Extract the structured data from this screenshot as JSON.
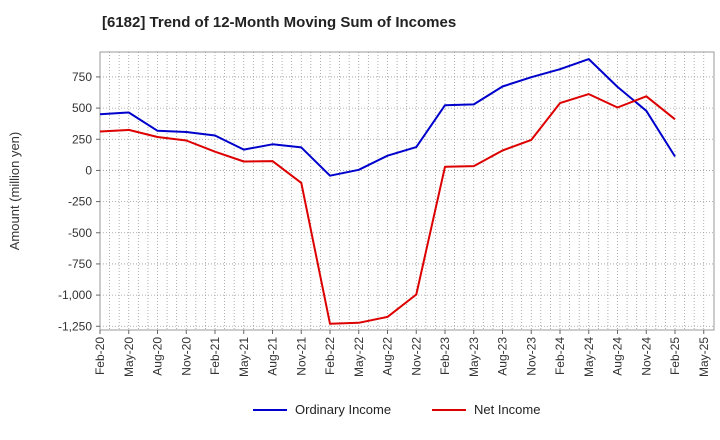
{
  "chart_data": {
    "type": "line",
    "title": "[6182]  Trend of 12-Month Moving Sum of Incomes",
    "xlabel": "",
    "ylabel": "Amount (million yen)",
    "categories": [
      "Feb-20",
      "May-20",
      "Aug-20",
      "Nov-20",
      "Feb-21",
      "May-21",
      "Aug-21",
      "Nov-21",
      "Feb-22",
      "May-22",
      "Aug-22",
      "Nov-22",
      "Feb-23",
      "May-23",
      "Aug-23",
      "Nov-23",
      "Feb-24",
      "May-24",
      "Aug-24",
      "Nov-24",
      "Feb-25",
      "May-25"
    ],
    "ylim": [
      -1280,
      950
    ],
    "yticks": [
      750,
      500,
      250,
      0,
      -250,
      -500,
      -750,
      -1000,
      -1250
    ],
    "ytick_labels": [
      "750",
      "500",
      "250",
      "0",
      "-250",
      "-500",
      "-750",
      "-1,000",
      "-1,250"
    ],
    "grid": true,
    "legend_position": "bottom",
    "series": [
      {
        "name": "Ordinary Income",
        "color": "#0000cc",
        "values": [
          450,
          465,
          318,
          308,
          280,
          167,
          210,
          185,
          -42,
          5,
          118,
          187,
          523,
          530,
          673,
          748,
          812,
          893,
          670,
          478,
          112,
          null
        ]
      },
      {
        "name": "Net Income",
        "color": "#dd0000",
        "values": [
          312,
          325,
          268,
          240,
          150,
          72,
          75,
          -100,
          -1230,
          -1222,
          -1175,
          -995,
          30,
          35,
          160,
          245,
          540,
          612,
          505,
          595,
          410,
          null
        ]
      }
    ]
  }
}
